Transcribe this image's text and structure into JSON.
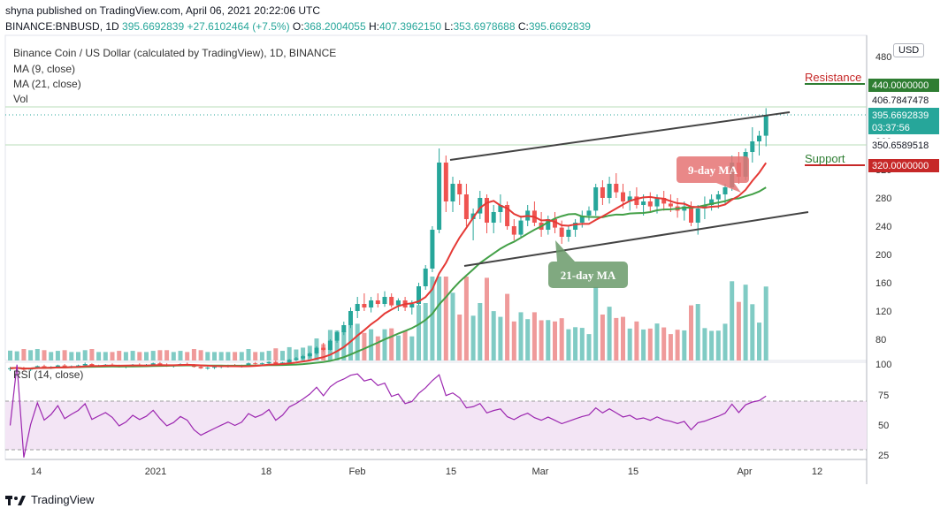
{
  "header": {
    "published_line": "shyna published on TradingView.com, April 06, 2021 20:22:06 UTC",
    "symbol": "BINANCE:BNBUSD, 1D",
    "price": "395.6692839",
    "change": "+27.6102464 (+7.5%)",
    "o_label": "O:",
    "o_value": "368.2004055",
    "h_label": "H:",
    "h_value": "407.3962150",
    "l_label": "L:",
    "l_value": "353.6978688",
    "c_label": "C:",
    "c_value": "395.6692839"
  },
  "legend": {
    "title": "Binance Coin / US Dollar (calculated by TradingView), 1D, BINANCE",
    "ma9": "MA (9, close)",
    "ma21": "MA (21, close)",
    "vol": "Vol",
    "rsi": "RSI (14, close)"
  },
  "currency_button": "USD",
  "footer": {
    "brand": "TradingView"
  },
  "colors": {
    "up": "#26a69a",
    "down": "#ef5350",
    "ma9": "#e53935",
    "ma21": "#43a047",
    "rsi_line": "#9c27b0",
    "rsi_band": "#f3e5f5",
    "level_green": "#2e7d32",
    "level_red": "#c62828"
  },
  "chart_data": {
    "type": "candlestick",
    "y_axis": {
      "ticks": [
        80,
        120,
        160,
        200,
        240,
        280,
        320,
        360,
        400,
        440,
        480
      ],
      "range": [
        50,
        510
      ]
    },
    "x_axis": {
      "tick_labels": [
        "14",
        "2021",
        "18",
        "Feb",
        "15",
        "Mar",
        "15",
        "Apr",
        "12"
      ]
    },
    "price_labels": {
      "resistance_level": "440.0000000",
      "high_line": "406.7847478",
      "last_price": "395.6692839",
      "countdown": "03:37:56",
      "prev_level": "350.6589518",
      "support_level": "320.0000000"
    },
    "annotations": {
      "resistance": "Resistance",
      "support": "Support",
      "ma9": "9-day MA",
      "ma21": "21-day MA"
    },
    "candles_approx": [
      [
        38,
        41,
        35,
        39
      ],
      [
        39,
        42,
        37,
        40
      ],
      [
        40,
        41,
        36,
        37
      ],
      [
        37,
        40,
        35,
        39
      ],
      [
        39,
        43,
        38,
        42
      ],
      [
        42,
        44,
        39,
        40
      ],
      [
        40,
        42,
        38,
        41
      ],
      [
        41,
        44,
        40,
        43
      ],
      [
        43,
        45,
        40,
        41
      ],
      [
        41,
        43,
        39,
        42
      ],
      [
        42,
        44,
        40,
        43
      ],
      [
        43,
        47,
        42,
        45
      ],
      [
        45,
        46,
        41,
        42
      ],
      [
        42,
        44,
        40,
        43
      ],
      [
        43,
        45,
        41,
        44
      ],
      [
        44,
        46,
        42,
        43
      ],
      [
        43,
        44,
        40,
        41
      ],
      [
        41,
        43,
        39,
        42
      ],
      [
        42,
        45,
        41,
        44
      ],
      [
        44,
        46,
        42,
        43
      ],
      [
        43,
        45,
        41,
        44
      ],
      [
        44,
        47,
        43,
        46
      ],
      [
        46,
        48,
        43,
        44
      ],
      [
        44,
        46,
        41,
        42
      ],
      [
        42,
        44,
        40,
        43
      ],
      [
        43,
        46,
        42,
        45
      ],
      [
        45,
        47,
        43,
        44
      ],
      [
        44,
        45,
        40,
        41
      ],
      [
        41,
        43,
        38,
        39
      ],
      [
        39,
        41,
        37,
        40
      ],
      [
        40,
        42,
        38,
        41
      ],
      [
        41,
        43,
        39,
        42
      ],
      [
        42,
        44,
        40,
        43
      ],
      [
        43,
        45,
        41,
        42
      ],
      [
        42,
        44,
        40,
        43
      ],
      [
        43,
        47,
        42,
        46
      ],
      [
        46,
        48,
        44,
        45
      ],
      [
        45,
        47,
        43,
        46
      ],
      [
        46,
        49,
        45,
        48
      ],
      [
        48,
        50,
        44,
        45
      ],
      [
        45,
        48,
        44,
        47
      ],
      [
        47,
        52,
        46,
        51
      ],
      [
        51,
        55,
        49,
        53
      ],
      [
        53,
        58,
        51,
        56
      ],
      [
        56,
        62,
        54,
        60
      ],
      [
        60,
        70,
        58,
        68
      ],
      [
        68,
        75,
        63,
        65
      ],
      [
        65,
        80,
        64,
        78
      ],
      [
        78,
        92,
        75,
        90
      ],
      [
        90,
        105,
        86,
        100
      ],
      [
        100,
        125,
        96,
        120
      ],
      [
        120,
        140,
        110,
        130
      ],
      [
        130,
        145,
        120,
        125
      ],
      [
        125,
        140,
        118,
        135
      ],
      [
        135,
        145,
        125,
        130
      ],
      [
        130,
        148,
        126,
        140
      ],
      [
        140,
        145,
        125,
        128
      ],
      [
        128,
        138,
        120,
        135
      ],
      [
        135,
        140,
        120,
        125
      ],
      [
        125,
        135,
        115,
        130
      ],
      [
        130,
        160,
        128,
        155
      ],
      [
        155,
        185,
        150,
        180
      ],
      [
        180,
        240,
        175,
        235
      ],
      [
        235,
        350,
        230,
        330
      ],
      [
        330,
        340,
        260,
        275
      ],
      [
        275,
        310,
        260,
        300
      ],
      [
        300,
        305,
        270,
        285
      ],
      [
        285,
        300,
        240,
        250
      ],
      [
        250,
        265,
        220,
        258
      ],
      [
        258,
        290,
        250,
        280
      ],
      [
        280,
        285,
        230,
        245
      ],
      [
        245,
        270,
        230,
        260
      ],
      [
        260,
        285,
        245,
        270
      ],
      [
        270,
        275,
        235,
        240
      ],
      [
        240,
        250,
        220,
        228
      ],
      [
        228,
        255,
        225,
        248
      ],
      [
        248,
        270,
        240,
        262
      ],
      [
        262,
        275,
        240,
        245
      ],
      [
        245,
        260,
        225,
        235
      ],
      [
        235,
        255,
        228,
        250
      ],
      [
        250,
        260,
        230,
        238
      ],
      [
        238,
        248,
        215,
        225
      ],
      [
        225,
        240,
        218,
        235
      ],
      [
        235,
        250,
        225,
        245
      ],
      [
        245,
        262,
        238,
        255
      ],
      [
        255,
        268,
        248,
        262
      ],
      [
        262,
        300,
        255,
        295
      ],
      [
        295,
        305,
        270,
        280
      ],
      [
        280,
        310,
        272,
        300
      ],
      [
        300,
        315,
        280,
        288
      ],
      [
        288,
        300,
        265,
        275
      ],
      [
        275,
        290,
        262,
        282
      ],
      [
        282,
        295,
        265,
        270
      ],
      [
        270,
        285,
        255,
        275
      ],
      [
        275,
        288,
        260,
        268
      ],
      [
        268,
        285,
        258,
        280
      ],
      [
        280,
        290,
        262,
        272
      ],
      [
        272,
        285,
        260,
        268
      ],
      [
        268,
        280,
        252,
        262
      ],
      [
        262,
        275,
        248,
        268
      ],
      [
        268,
        275,
        240,
        245
      ],
      [
        245,
        270,
        228,
        265
      ],
      [
        265,
        282,
        250,
        270
      ],
      [
        270,
        285,
        262,
        278
      ],
      [
        278,
        290,
        265,
        285
      ],
      [
        285,
        300,
        270,
        295
      ],
      [
        295,
        340,
        290,
        330
      ],
      [
        330,
        345,
        300,
        310
      ],
      [
        310,
        350,
        305,
        345
      ],
      [
        345,
        380,
        330,
        360
      ],
      [
        360,
        375,
        340,
        368
      ],
      [
        368,
        407,
        353,
        396
      ]
    ]
  }
}
